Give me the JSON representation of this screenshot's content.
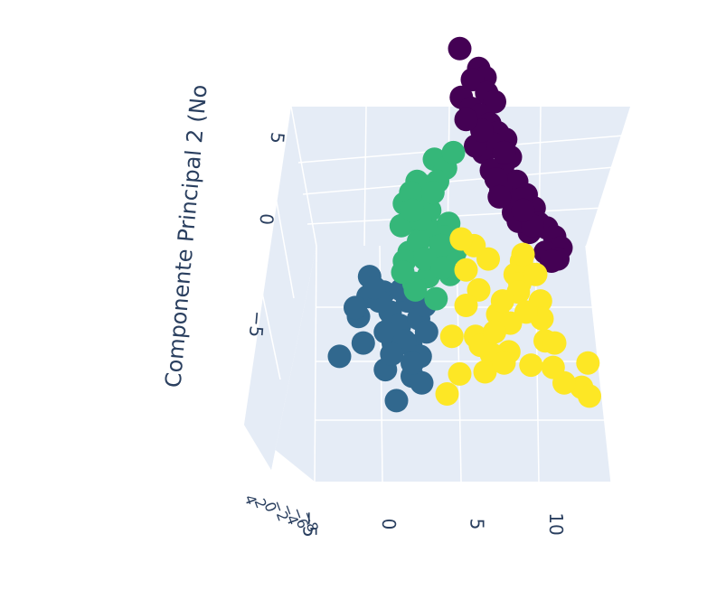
{
  "chart_data": {
    "type": "scatter",
    "title": "",
    "axes": {
      "x": {
        "title": "",
        "tick_labels": [
          "−5",
          "0",
          "5",
          "10"
        ],
        "ticks": [
          -5,
          0,
          5,
          10
        ],
        "range": [
          -9,
          11
        ]
      },
      "y": {
        "title": "Componente Principal 2 (No",
        "tick_labels": [
          "5",
          "0",
          "−5"
        ],
        "ticks": [
          5,
          0,
          -5
        ],
        "range": [
          -10,
          8
        ]
      },
      "z": {
        "title": "",
        "tick_labels": [
          "4",
          "2",
          "0",
          "−2",
          "−4",
          "−6",
          "−8"
        ],
        "ticks": [
          4,
          2,
          0,
          -2,
          -4,
          -6,
          -8
        ]
      }
    },
    "grid": true,
    "legend": "none",
    "series": [
      {
        "color": "#440154",
        "x": [
          0.2,
          1.4,
          1.8,
          1.0,
          1.9,
          2.4,
          0.3,
          0.9,
          1.5,
          2.1,
          2.6,
          3.1,
          2.3,
          1.7,
          3.4,
          2.9,
          3.8,
          4.4,
          4.9,
          5.2,
          5.7,
          6.2,
          6.6,
          4.6,
          3.6,
          2.8,
          2.2,
          1.2,
          3.0,
          4.1,
          5.6,
          6.4,
          3.9,
          2.5,
          4.8,
          6.0,
          4.2,
          1.6,
          0.6,
          2.7
        ],
        "y": [
          7.6,
          6.7,
          6.3,
          6.2,
          5.6,
          5.2,
          5.4,
          4.9,
          4.6,
          4.2,
          3.8,
          3.5,
          3.3,
          2.9,
          2.7,
          2.2,
          1.6,
          1.0,
          0.4,
          -0.3,
          -0.5,
          -0.9,
          -1.4,
          -0.7,
          0.2,
          1.2,
          2.1,
          3.2,
          2.9,
          0.8,
          -1.6,
          -1.9,
          -0.2,
          1.7,
          -0.4,
          -2.0,
          0.3,
          3.9,
          4.4,
          0.9
        ]
      },
      {
        "color": "#31688e",
        "x": [
          -7.4,
          -5.6,
          -6.2,
          -5.5,
          -4.6,
          -4.2,
          -3.6,
          -2.9,
          -2.3,
          -2.8,
          -2.2,
          -4.0,
          -4.9,
          -3.1,
          -2.4,
          -2.8,
          -4.5,
          -5.9,
          -3.3,
          -4.5,
          -1.9,
          -2.0,
          -3.8,
          -6.4,
          -5.2,
          -3.5,
          -4.1
        ],
        "y": [
          -6.3,
          -3.6,
          -4.5,
          -2.7,
          -3.4,
          -4.3,
          -4.9,
          -5.8,
          -6.3,
          -7.2,
          -7.5,
          -5.7,
          -3.8,
          -3.8,
          -4.6,
          -6.6,
          -5.2,
          -5.7,
          -5.6,
          -6.9,
          -5.2,
          -4.0,
          -8.3,
          -4.1,
          -3.2,
          -3.3,
          -6.2
        ]
      },
      {
        "color": "#35b779",
        "x": [
          -3.0,
          -2.7,
          -2.1,
          -3.3,
          -2.5,
          -1.4,
          -0.7,
          -0.2,
          -1.2,
          -2.1,
          -2.9,
          -3.5,
          -1.6,
          -0.5,
          -2.4,
          -1.8,
          -2.7,
          -1.1,
          -0.4,
          -1.3,
          -2.6,
          -3.3,
          -0.8,
          -1.7,
          -2.3,
          -1.5,
          -2.8,
          -0.1,
          -3.4,
          -1.0,
          -2.0,
          -0.9
        ],
        "y": [
          -1.6,
          -0.2,
          0.8,
          0.6,
          1.6,
          2.6,
          2.2,
          2.9,
          1.6,
          1.4,
          1.1,
          -0.4,
          -0.6,
          -0.3,
          -1.1,
          -2.7,
          -3.0,
          -2.0,
          -2.6,
          -3.7,
          -3.3,
          -2.0,
          -0.9,
          0.3,
          -0.1,
          1.1,
          0.3,
          -1.6,
          -2.5,
          -1.3,
          -1.9,
          -2.3
        ]
      },
      {
        "color": "#fde725",
        "x": [
          2.0,
          1.1,
          0.3,
          0.6,
          1.4,
          3.7,
          4.0,
          4.1,
          4.2,
          5.0,
          5.3,
          5.4,
          5.6,
          6.2,
          8.3,
          7.9,
          8.4,
          6.8,
          6.1,
          3.3,
          -0.6,
          0.2,
          1.2,
          2.6,
          3.4,
          2.2,
          1.5,
          0.6,
          3.9,
          2.9,
          4.4,
          1.8,
          -0.3,
          2.4,
          4.7,
          3.0
        ],
        "y": [
          -1.9,
          -1.3,
          -1.0,
          -2.4,
          -3.3,
          -2.6,
          -3.0,
          -2.0,
          -1.7,
          -2.6,
          -3.8,
          -4.6,
          -5.6,
          -5.7,
          -6.6,
          -7.7,
          -8.1,
          -7.5,
          -6.8,
          -6.1,
          -8.0,
          -7.1,
          -5.4,
          -4.4,
          -4.8,
          -6.2,
          -5.8,
          -4.0,
          -3.4,
          -3.8,
          -4.3,
          -7.0,
          -5.4,
          -5.2,
          -6.7,
          -6.6
        ]
      }
    ]
  }
}
